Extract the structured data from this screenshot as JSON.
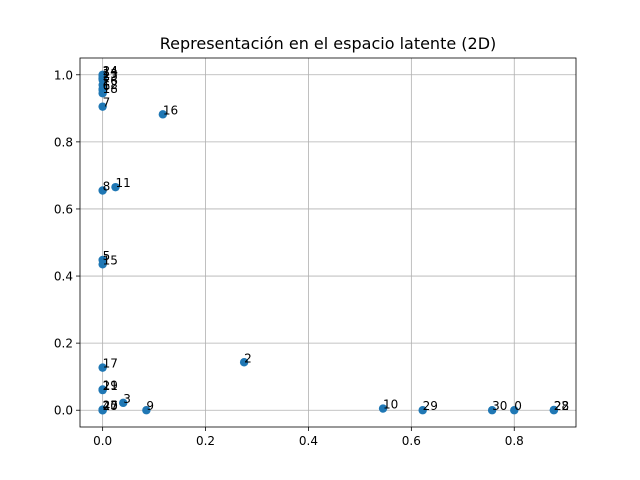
{
  "chart_data": {
    "type": "scatter",
    "title": "Representación en el espacio latente (2D)",
    "xlabel": "",
    "ylabel": "",
    "xlim": [
      -0.044,
      0.92
    ],
    "ylim": [
      -0.05,
      1.05
    ],
    "xticks": [
      0.0,
      0.2,
      0.4,
      0.6,
      0.8
    ],
    "xtick_labels": [
      "0.0",
      "0.2",
      "0.4",
      "0.6",
      "0.8"
    ],
    "yticks": [
      0.0,
      0.2,
      0.4,
      0.6,
      0.8,
      1.0
    ],
    "ytick_labels": [
      "0.0",
      "0.2",
      "0.4",
      "0.6",
      "0.8",
      "1.0"
    ],
    "grid": true,
    "marker_color": "#1f77b4",
    "points": [
      {
        "label": "0",
        "x": 0.8,
        "y": 0.0
      },
      {
        "label": "1",
        "x": 0.0,
        "y": 0.99
      },
      {
        "label": "2",
        "x": 0.275,
        "y": 0.143
      },
      {
        "label": "3",
        "x": 0.04,
        "y": 0.022
      },
      {
        "label": "4",
        "x": 0.0,
        "y": 0.0
      },
      {
        "label": "5",
        "x": 0.0,
        "y": 0.448
      },
      {
        "label": "6",
        "x": 0.0,
        "y": 0.955
      },
      {
        "label": "7",
        "x": 0.0,
        "y": 0.905
      },
      {
        "label": "8",
        "x": 0.0,
        "y": 0.655
      },
      {
        "label": "9",
        "x": 0.085,
        "y": 0.0
      },
      {
        "label": "10",
        "x": 0.545,
        "y": 0.005
      },
      {
        "label": "11",
        "x": 0.025,
        "y": 0.665
      },
      {
        "label": "12",
        "x": 0.0,
        "y": 0.958
      },
      {
        "label": "13",
        "x": 0.0,
        "y": 0.99
      },
      {
        "label": "14",
        "x": 0.0,
        "y": 0.998
      },
      {
        "label": "15",
        "x": 0.0,
        "y": 0.435
      },
      {
        "label": "16",
        "x": 0.117,
        "y": 0.882
      },
      {
        "label": "17",
        "x": 0.0,
        "y": 0.127
      },
      {
        "label": "18",
        "x": 0.0,
        "y": 0.945
      },
      {
        "label": "19",
        "x": 0.0,
        "y": 0.062
      },
      {
        "label": "20",
        "x": 0.0,
        "y": 0.0
      },
      {
        "label": "21",
        "x": 0.0,
        "y": 0.06
      },
      {
        "label": "22",
        "x": 0.877,
        "y": 0.0
      },
      {
        "label": "23",
        "x": 0.0,
        "y": 0.985
      },
      {
        "label": "24",
        "x": 0.0,
        "y": 1.0
      },
      {
        "label": "25",
        "x": 0.0,
        "y": 0.002
      },
      {
        "label": "26",
        "x": 0.0,
        "y": 0.97
      },
      {
        "label": "27",
        "x": 0.0,
        "y": 0.001
      },
      {
        "label": "28",
        "x": 0.877,
        "y": 0.001
      },
      {
        "label": "29",
        "x": 0.622,
        "y": 0.0
      },
      {
        "label": "30",
        "x": 0.757,
        "y": 0.0
      }
    ]
  }
}
